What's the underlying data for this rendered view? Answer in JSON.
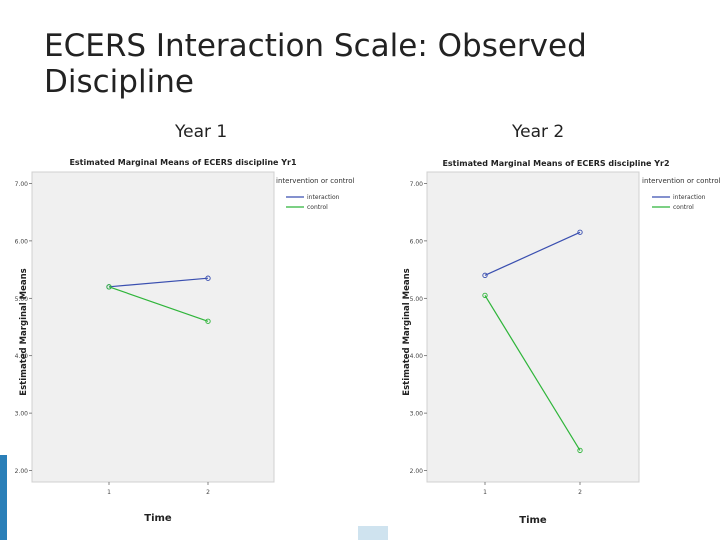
{
  "slide": {
    "title_line1": "ECERS Interaction Scale: Observed",
    "title_line2": "Discipline",
    "year1_label": "Year 1",
    "year2_label": "Year 2"
  },
  "colors": {
    "interaction": "#3a4fb0",
    "control": "#2fb53a",
    "plot_bg": "#f0f0f0",
    "accent_bar": "#2a7fb8"
  },
  "chart_data": [
    {
      "type": "line",
      "title": "Estimated Marginal Means of ECERS discipline Yr1",
      "xlabel": "Time",
      "ylabel": "Estimated Marginal Means",
      "x": [
        "1",
        "2"
      ],
      "ylim": [
        1.8,
        7.2
      ],
      "yticks": [
        "7.00",
        "6.00",
        "5.00",
        "4.00",
        "3.00",
        "2.00"
      ],
      "legend_title": "intervention or control",
      "legend_position": "right",
      "series": [
        {
          "name": "interaction",
          "values": [
            5.2,
            5.35
          ]
        },
        {
          "name": "control",
          "values": [
            5.2,
            4.6
          ]
        }
      ]
    },
    {
      "type": "line",
      "title": "Estimated Marginal Means of ECERS discipline Yr2",
      "xlabel": "Time",
      "ylabel": "Estimated Marginal Means",
      "x": [
        "1",
        "2"
      ],
      "ylim": [
        1.8,
        7.2
      ],
      "yticks": [
        "7.00",
        "6.00",
        "5.00",
        "4.00",
        "3.00",
        "2.00"
      ],
      "legend_title": "intervention or control",
      "legend_position": "right",
      "series": [
        {
          "name": "interaction",
          "values": [
            5.4,
            6.15
          ]
        },
        {
          "name": "control",
          "values": [
            5.05,
            2.35
          ]
        }
      ]
    }
  ]
}
